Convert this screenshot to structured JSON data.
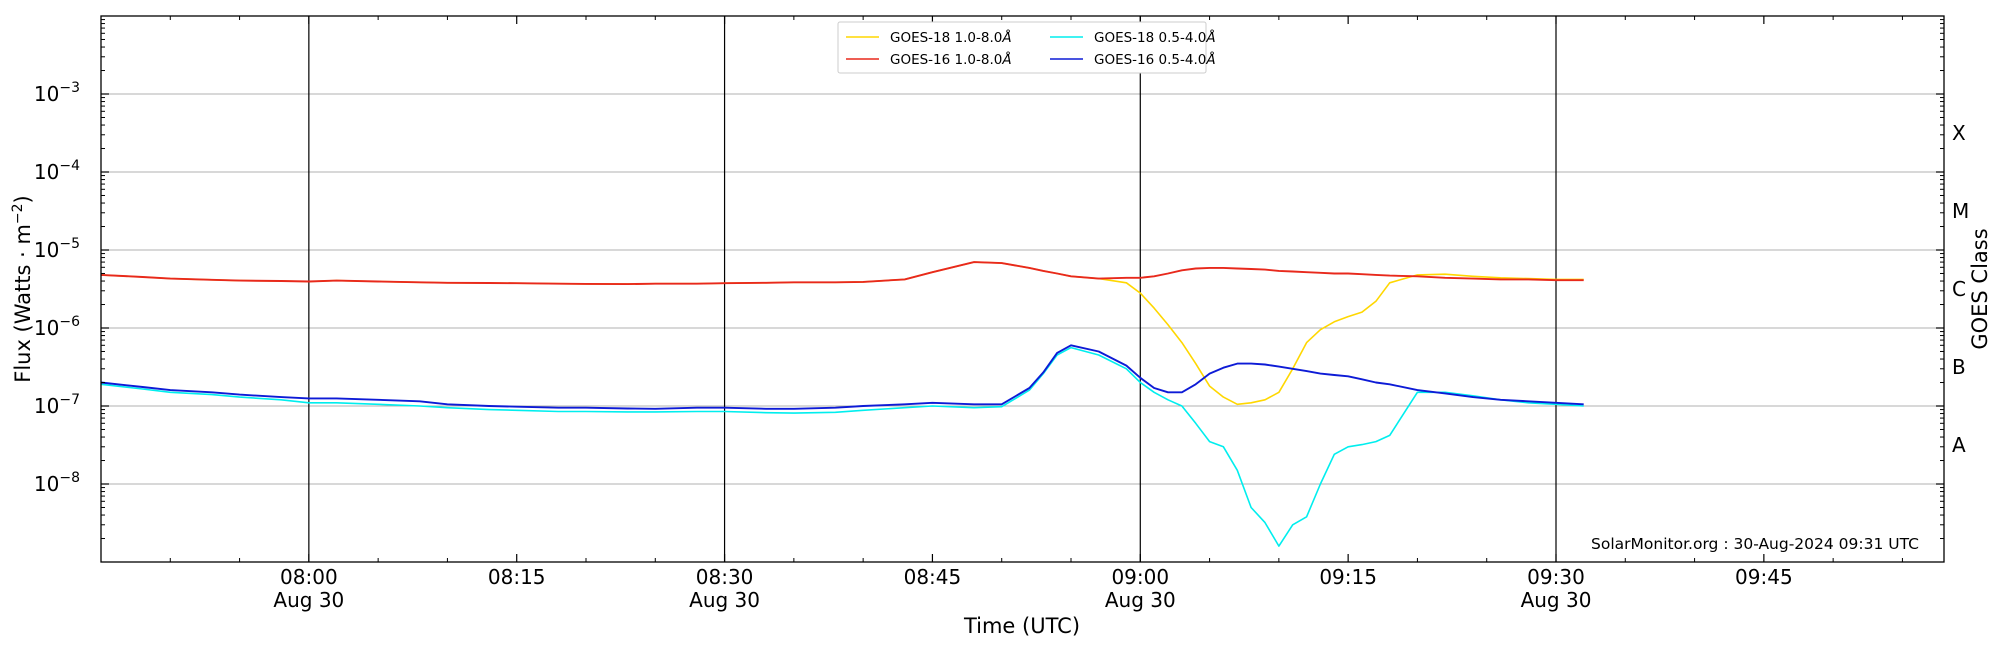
{
  "chart_data": {
    "type": "line",
    "xlabel": "Time (UTC)",
    "ylabel": "Flux (Watts · m",
    "ylabel_sup": "−2",
    "ylabel_end": ")",
    "y2label": "GOES Class",
    "yscale": "log",
    "xlim": [
      465,
      598
    ],
    "ylim": [
      1e-09,
      0.01
    ],
    "grid": "horizontal",
    "legend_position": "top-center",
    "yticks": [
      {
        "value": 1e-08,
        "base": "10",
        "exp": "−8"
      },
      {
        "value": 1e-07,
        "base": "10",
        "exp": "−7"
      },
      {
        "value": 1e-06,
        "base": "10",
        "exp": "−6"
      },
      {
        "value": 1e-05,
        "base": "10",
        "exp": "−5"
      },
      {
        "value": 0.0001,
        "base": "10",
        "exp": "−4"
      },
      {
        "value": 0.001,
        "base": "10",
        "exp": "−3"
      }
    ],
    "xticks": [
      {
        "value": 480,
        "line1": "08:00",
        "line2": "Aug 30"
      },
      {
        "value": 495,
        "line1": "08:15",
        "line2": ""
      },
      {
        "value": 510,
        "line1": "08:30",
        "line2": "Aug 30"
      },
      {
        "value": 525,
        "line1": "08:45",
        "line2": ""
      },
      {
        "value": 540,
        "line1": "09:00",
        "line2": "Aug 30"
      },
      {
        "value": 555,
        "line1": "09:15",
        "line2": ""
      },
      {
        "value": 570,
        "line1": "09:30",
        "line2": "Aug 30"
      },
      {
        "value": 585,
        "line1": "09:45",
        "line2": ""
      }
    ],
    "vlines": [
      480,
      510,
      540,
      570
    ],
    "goes_classes": [
      {
        "label": "A",
        "value": 3.16e-08
      },
      {
        "label": "B",
        "value": 3.16e-07
      },
      {
        "label": "C",
        "value": 3.16e-06
      },
      {
        "label": "M",
        "value": 3.16e-05
      },
      {
        "label": "X",
        "value": 0.000316
      }
    ],
    "series": [
      {
        "name": "GOES-18 1.0-8.0Å",
        "color": "#ffd700",
        "x": [
          465,
          468,
          470,
          473,
          475,
          478,
          480,
          482,
          485,
          488,
          490,
          493,
          495,
          498,
          500,
          503,
          505,
          508,
          510,
          513,
          515,
          518,
          520,
          523,
          525,
          528,
          530,
          532,
          533,
          534,
          535,
          537,
          539,
          540,
          541,
          542,
          543,
          544,
          545,
          546,
          547,
          548,
          549,
          550,
          551,
          552,
          553,
          554,
          555,
          556,
          557,
          558,
          560,
          562,
          564,
          566,
          568,
          570,
          572
        ],
        "y": [
          4.8e-06,
          4.5e-06,
          4.3e-06,
          4.15e-06,
          4.05e-06,
          4e-06,
          3.95e-06,
          4.05e-06,
          3.95e-06,
          3.85e-06,
          3.8e-06,
          3.78e-06,
          3.75e-06,
          3.7e-06,
          3.68e-06,
          3.65e-06,
          3.7e-06,
          3.7e-06,
          3.75e-06,
          3.8e-06,
          3.85e-06,
          3.85e-06,
          3.9e-06,
          4.2e-06,
          5.2e-06,
          7e-06,
          6.8e-06,
          5.9e-06,
          5.4e-06,
          5e-06,
          4.6e-06,
          4.3e-06,
          3.8e-06,
          2.8e-06,
          1.8e-06,
          1.1e-06,
          6.5e-07,
          3.5e-07,
          1.8e-07,
          1.3e-07,
          1.05e-07,
          1.1e-07,
          1.2e-07,
          1.5e-07,
          3e-07,
          6.5e-07,
          9.5e-07,
          1.2e-06,
          1.4e-06,
          1.6e-06,
          2.2e-06,
          3.8e-06,
          4.8e-06,
          4.9e-06,
          4.6e-06,
          4.4e-06,
          4.3e-06,
          4.2e-06,
          4.2e-06
        ]
      },
      {
        "name": "GOES-16 1.0-8.0Å",
        "color": "#e8291c",
        "x": [
          465,
          468,
          470,
          473,
          475,
          478,
          480,
          482,
          485,
          488,
          490,
          493,
          495,
          498,
          500,
          503,
          505,
          508,
          510,
          513,
          515,
          518,
          520,
          523,
          525,
          528,
          530,
          532,
          533,
          534,
          535,
          537,
          539,
          540,
          541,
          542,
          543,
          544,
          545,
          546,
          547,
          548,
          549,
          550,
          551,
          552,
          553,
          554,
          555,
          556,
          557,
          558,
          560,
          562,
          564,
          566,
          568,
          570,
          572
        ],
        "y": [
          4.8e-06,
          4.5e-06,
          4.3e-06,
          4.15e-06,
          4.05e-06,
          4e-06,
          3.95e-06,
          4.05e-06,
          3.95e-06,
          3.85e-06,
          3.8e-06,
          3.78e-06,
          3.75e-06,
          3.7e-06,
          3.68e-06,
          3.65e-06,
          3.7e-06,
          3.7e-06,
          3.75e-06,
          3.8e-06,
          3.85e-06,
          3.85e-06,
          3.9e-06,
          4.2e-06,
          5.2e-06,
          7e-06,
          6.8e-06,
          5.9e-06,
          5.4e-06,
          5e-06,
          4.6e-06,
          4.3e-06,
          4.4e-06,
          4.4e-06,
          4.6e-06,
          5e-06,
          5.5e-06,
          5.8e-06,
          5.9e-06,
          5.9e-06,
          5.8e-06,
          5.7e-06,
          5.6e-06,
          5.4e-06,
          5.3e-06,
          5.2e-06,
          5.1e-06,
          5e-06,
          5e-06,
          4.9e-06,
          4.8e-06,
          4.7e-06,
          4.6e-06,
          4.4e-06,
          4.3e-06,
          4.2e-06,
          4.2e-06,
          4.1e-06,
          4.1e-06
        ]
      },
      {
        "name": "GOES-18 0.5-4.0Å",
        "color": "#00eeee",
        "x": [
          465,
          468,
          470,
          473,
          475,
          478,
          480,
          482,
          485,
          488,
          490,
          493,
          495,
          498,
          500,
          503,
          505,
          508,
          510,
          513,
          515,
          518,
          520,
          523,
          525,
          528,
          530,
          532,
          533,
          534,
          535,
          537,
          539,
          540,
          541,
          542,
          543,
          544,
          545,
          546,
          547,
          548,
          549,
          550,
          551,
          552,
          553,
          554,
          555,
          556,
          557,
          558,
          560,
          562,
          564,
          566,
          568,
          570,
          572
        ],
        "y": [
          1.9e-07,
          1.65e-07,
          1.5e-07,
          1.4e-07,
          1.3e-07,
          1.2e-07,
          1.1e-07,
          1.1e-07,
          1.05e-07,
          1e-07,
          9.5e-08,
          9e-08,
          8.8e-08,
          8.5e-08,
          8.5e-08,
          8.4e-08,
          8.4e-08,
          8.5e-08,
          8.5e-08,
          8.2e-08,
          8.1e-08,
          8.3e-08,
          8.8e-08,
          9.5e-08,
          1e-07,
          9.5e-08,
          9.8e-08,
          1.6e-07,
          2.6e-07,
          4.5e-07,
          5.6e-07,
          4.5e-07,
          3e-07,
          2e-07,
          1.5e-07,
          1.2e-07,
          1e-07,
          6e-08,
          3.5e-08,
          3e-08,
          1.5e-08,
          5e-09,
          3.2e-09,
          1.6e-09,
          3e-09,
          3.8e-09,
          1e-08,
          2.4e-08,
          3e-08,
          3.2e-08,
          3.5e-08,
          4.2e-08,
          1.5e-07,
          1.5e-07,
          1.35e-07,
          1.2e-07,
          1.1e-07,
          1.05e-07,
          1e-07
        ]
      },
      {
        "name": "GOES-16 0.5-4.0Å",
        "color": "#0d1bd6",
        "x": [
          465,
          468,
          470,
          473,
          475,
          478,
          480,
          482,
          485,
          488,
          490,
          493,
          495,
          498,
          500,
          503,
          505,
          508,
          510,
          513,
          515,
          518,
          520,
          523,
          525,
          528,
          530,
          532,
          533,
          534,
          535,
          537,
          539,
          540,
          541,
          542,
          543,
          544,
          545,
          546,
          547,
          548,
          549,
          550,
          551,
          552,
          553,
          554,
          555,
          556,
          557,
          558,
          560,
          562,
          564,
          566,
          568,
          570,
          572
        ],
        "y": [
          2e-07,
          1.75e-07,
          1.6e-07,
          1.5e-07,
          1.4e-07,
          1.3e-07,
          1.25e-07,
          1.25e-07,
          1.2e-07,
          1.15e-07,
          1.05e-07,
          1e-07,
          9.8e-08,
          9.5e-08,
          9.5e-08,
          9.3e-08,
          9.2e-08,
          9.5e-08,
          9.5e-08,
          9.2e-08,
          9.2e-08,
          9.5e-08,
          1e-07,
          1.05e-07,
          1.1e-07,
          1.05e-07,
          1.05e-07,
          1.7e-07,
          2.7e-07,
          4.8e-07,
          6e-07,
          5e-07,
          3.3e-07,
          2.3e-07,
          1.7e-07,
          1.5e-07,
          1.5e-07,
          1.9e-07,
          2.6e-07,
          3.1e-07,
          3.5e-07,
          3.5e-07,
          3.4e-07,
          3.2e-07,
          3e-07,
          2.8e-07,
          2.6e-07,
          2.5e-07,
          2.4e-07,
          2.2e-07,
          2e-07,
          1.9e-07,
          1.6e-07,
          1.45e-07,
          1.3e-07,
          1.2e-07,
          1.15e-07,
          1.1e-07,
          1.05e-07
        ]
      }
    ],
    "legend": [
      {
        "label": "GOES-18 1.0-8.0",
        "unit": "Å",
        "series": 0
      },
      {
        "label": "GOES-18 0.5-4.0",
        "unit": "Å",
        "series": 2
      },
      {
        "label": "GOES-16 1.0-8.0",
        "unit": "Å",
        "series": 1
      },
      {
        "label": "GOES-16 0.5-4.0",
        "unit": "Å",
        "series": 3
      }
    ],
    "annotation": "SolarMonitor.org : 30-Aug-2024 09:31 UTC"
  }
}
